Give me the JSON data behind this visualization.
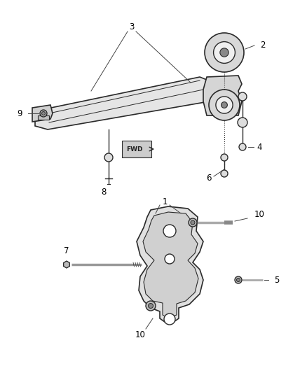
{
  "bg_color": "#ffffff",
  "line_color": "#2a2a2a",
  "label_color": "#000000",
  "label_fontsize": 8.5,
  "leader_color": "#444444",
  "fig_width": 4.38,
  "fig_height": 5.33,
  "dpi": 100
}
